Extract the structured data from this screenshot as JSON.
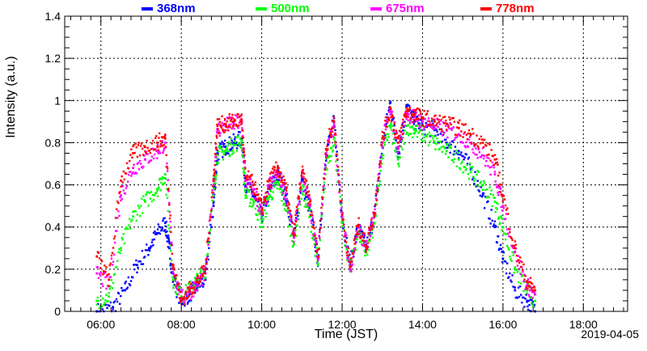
{
  "chart_data": {
    "type": "scatter",
    "title": "",
    "xlabel": "Time (JST)",
    "ylabel": "Intensity (a.u.)",
    "date_label": "2019-04-05",
    "xlim_hours": [
      5.1,
      19.1
    ],
    "ylim": [
      0,
      1.4
    ],
    "x_ticks": [
      {
        "h": 6,
        "label": "06:00"
      },
      {
        "h": 8,
        "label": "08:00"
      },
      {
        "h": 10,
        "label": "10:00"
      },
      {
        "h": 12,
        "label": "12:00"
      },
      {
        "h": 14,
        "label": "14:00"
      },
      {
        "h": 16,
        "label": "16:00"
      },
      {
        "h": 18,
        "label": "18:00"
      }
    ],
    "y_ticks": [
      {
        "v": 0,
        "label": "0"
      },
      {
        "v": 0.2,
        "label": "0.2"
      },
      {
        "v": 0.4,
        "label": "0.4"
      },
      {
        "v": 0.6,
        "label": "0.6"
      },
      {
        "v": 0.8,
        "label": "0.8"
      },
      {
        "v": 1.0,
        "label": "1"
      },
      {
        "v": 1.2,
        "label": "1.2"
      },
      {
        "v": 1.4,
        "label": "1.4"
      }
    ],
    "grid": true,
    "legend_position": "top",
    "series": [
      {
        "name": "368nm",
        "color": "#0000ff",
        "points": [
          [
            5.9,
            0.0
          ],
          [
            6.3,
            0.02
          ],
          [
            6.6,
            0.1
          ],
          [
            6.9,
            0.22
          ],
          [
            7.2,
            0.3
          ],
          [
            7.4,
            0.37
          ],
          [
            7.6,
            0.42
          ],
          [
            7.7,
            0.3
          ],
          [
            7.8,
            0.15
          ],
          [
            8.0,
            0.05
          ],
          [
            8.2,
            0.08
          ],
          [
            8.4,
            0.12
          ],
          [
            8.6,
            0.15
          ],
          [
            8.8,
            0.5
          ],
          [
            8.9,
            0.75
          ],
          [
            9.1,
            0.78
          ],
          [
            9.3,
            0.8
          ],
          [
            9.5,
            0.82
          ],
          [
            9.6,
            0.6
          ],
          [
            9.8,
            0.55
          ],
          [
            10.0,
            0.45
          ],
          [
            10.2,
            0.58
          ],
          [
            10.4,
            0.65
          ],
          [
            10.6,
            0.55
          ],
          [
            10.8,
            0.35
          ],
          [
            11.0,
            0.62
          ],
          [
            11.2,
            0.48
          ],
          [
            11.4,
            0.25
          ],
          [
            11.6,
            0.75
          ],
          [
            11.8,
            0.9
          ],
          [
            12.0,
            0.45
          ],
          [
            12.2,
            0.22
          ],
          [
            12.4,
            0.4
          ],
          [
            12.6,
            0.3
          ],
          [
            12.8,
            0.45
          ],
          [
            13.0,
            0.78
          ],
          [
            13.2,
            0.99
          ],
          [
            13.4,
            0.75
          ],
          [
            13.6,
            0.97
          ],
          [
            13.8,
            0.9
          ],
          [
            14.0,
            0.88
          ],
          [
            14.3,
            0.86
          ],
          [
            14.6,
            0.8
          ],
          [
            14.9,
            0.76
          ],
          [
            15.2,
            0.68
          ],
          [
            15.5,
            0.55
          ],
          [
            15.8,
            0.4
          ],
          [
            16.0,
            0.25
          ],
          [
            16.3,
            0.1
          ],
          [
            16.6,
            0.05
          ],
          [
            16.8,
            0.0
          ]
        ]
      },
      {
        "name": "500nm",
        "color": "#00ff00",
        "points": [
          [
            5.9,
            0.05
          ],
          [
            6.2,
            0.07
          ],
          [
            6.5,
            0.3
          ],
          [
            6.8,
            0.45
          ],
          [
            7.1,
            0.52
          ],
          [
            7.4,
            0.58
          ],
          [
            7.6,
            0.65
          ],
          [
            7.8,
            0.15
          ],
          [
            8.0,
            0.07
          ],
          [
            8.2,
            0.1
          ],
          [
            8.4,
            0.15
          ],
          [
            8.6,
            0.2
          ],
          [
            8.8,
            0.55
          ],
          [
            8.9,
            0.74
          ],
          [
            9.1,
            0.76
          ],
          [
            9.3,
            0.79
          ],
          [
            9.5,
            0.81
          ],
          [
            9.6,
            0.55
          ],
          [
            9.8,
            0.52
          ],
          [
            10.0,
            0.42
          ],
          [
            10.2,
            0.55
          ],
          [
            10.4,
            0.6
          ],
          [
            10.6,
            0.5
          ],
          [
            10.8,
            0.32
          ],
          [
            11.0,
            0.58
          ],
          [
            11.2,
            0.45
          ],
          [
            11.4,
            0.22
          ],
          [
            11.6,
            0.68
          ],
          [
            11.8,
            0.82
          ],
          [
            12.0,
            0.42
          ],
          [
            12.2,
            0.2
          ],
          [
            12.4,
            0.38
          ],
          [
            12.6,
            0.28
          ],
          [
            12.8,
            0.42
          ],
          [
            13.0,
            0.74
          ],
          [
            13.2,
            0.88
          ],
          [
            13.4,
            0.7
          ],
          [
            13.6,
            0.88
          ],
          [
            13.8,
            0.86
          ],
          [
            14.0,
            0.84
          ],
          [
            14.3,
            0.8
          ],
          [
            14.6,
            0.76
          ],
          [
            14.9,
            0.72
          ],
          [
            15.2,
            0.66
          ],
          [
            15.5,
            0.6
          ],
          [
            15.8,
            0.52
          ],
          [
            16.0,
            0.4
          ],
          [
            16.3,
            0.2
          ],
          [
            16.6,
            0.1
          ],
          [
            16.8,
            0.05
          ]
        ]
      },
      {
        "name": "675nm",
        "color": "#ff00ff",
        "points": [
          [
            5.9,
            0.18
          ],
          [
            6.2,
            0.12
          ],
          [
            6.5,
            0.55
          ],
          [
            6.8,
            0.68
          ],
          [
            7.1,
            0.72
          ],
          [
            7.4,
            0.76
          ],
          [
            7.6,
            0.8
          ],
          [
            7.8,
            0.2
          ],
          [
            8.0,
            0.06
          ],
          [
            8.2,
            0.09
          ],
          [
            8.4,
            0.13
          ],
          [
            8.6,
            0.18
          ],
          [
            8.8,
            0.6
          ],
          [
            8.9,
            0.86
          ],
          [
            9.1,
            0.88
          ],
          [
            9.3,
            0.89
          ],
          [
            9.5,
            0.9
          ],
          [
            9.6,
            0.62
          ],
          [
            9.8,
            0.58
          ],
          [
            10.0,
            0.46
          ],
          [
            10.2,
            0.6
          ],
          [
            10.4,
            0.66
          ],
          [
            10.6,
            0.56
          ],
          [
            10.8,
            0.35
          ],
          [
            11.0,
            0.64
          ],
          [
            11.2,
            0.5
          ],
          [
            11.4,
            0.25
          ],
          [
            11.6,
            0.75
          ],
          [
            11.8,
            0.88
          ],
          [
            12.0,
            0.45
          ],
          [
            12.2,
            0.2
          ],
          [
            12.4,
            0.4
          ],
          [
            12.6,
            0.3
          ],
          [
            12.8,
            0.45
          ],
          [
            13.0,
            0.8
          ],
          [
            13.2,
            0.95
          ],
          [
            13.4,
            0.78
          ],
          [
            13.6,
            0.94
          ],
          [
            13.8,
            0.92
          ],
          [
            14.0,
            0.9
          ],
          [
            14.3,
            0.88
          ],
          [
            14.6,
            0.86
          ],
          [
            14.9,
            0.84
          ],
          [
            15.2,
            0.8
          ],
          [
            15.5,
            0.74
          ],
          [
            15.8,
            0.65
          ],
          [
            16.0,
            0.5
          ],
          [
            16.3,
            0.28
          ],
          [
            16.6,
            0.12
          ],
          [
            16.8,
            0.08
          ]
        ]
      },
      {
        "name": "778nm",
        "color": "#ff0000",
        "points": [
          [
            5.9,
            0.26
          ],
          [
            6.2,
            0.15
          ],
          [
            6.5,
            0.62
          ],
          [
            6.8,
            0.75
          ],
          [
            7.1,
            0.78
          ],
          [
            7.4,
            0.8
          ],
          [
            7.6,
            0.82
          ],
          [
            7.8,
            0.22
          ],
          [
            8.0,
            0.05
          ],
          [
            8.2,
            0.1
          ],
          [
            8.4,
            0.14
          ],
          [
            8.6,
            0.2
          ],
          [
            8.8,
            0.62
          ],
          [
            8.9,
            0.88
          ],
          [
            9.1,
            0.89
          ],
          [
            9.3,
            0.9
          ],
          [
            9.5,
            0.91
          ],
          [
            9.6,
            0.64
          ],
          [
            9.8,
            0.6
          ],
          [
            10.0,
            0.48
          ],
          [
            10.2,
            0.62
          ],
          [
            10.4,
            0.68
          ],
          [
            10.6,
            0.58
          ],
          [
            10.8,
            0.36
          ],
          [
            11.0,
            0.66
          ],
          [
            11.2,
            0.52
          ],
          [
            11.4,
            0.26
          ],
          [
            11.6,
            0.77
          ],
          [
            11.8,
            0.9
          ],
          [
            12.0,
            0.46
          ],
          [
            12.2,
            0.21
          ],
          [
            12.4,
            0.41
          ],
          [
            12.6,
            0.31
          ],
          [
            12.8,
            0.46
          ],
          [
            13.0,
            0.82
          ],
          [
            13.2,
            0.96
          ],
          [
            13.4,
            0.8
          ],
          [
            13.6,
            0.95
          ],
          [
            13.8,
            0.93
          ],
          [
            14.0,
            0.92
          ],
          [
            14.3,
            0.9
          ],
          [
            14.6,
            0.89
          ],
          [
            14.9,
            0.87
          ],
          [
            15.2,
            0.84
          ],
          [
            15.5,
            0.8
          ],
          [
            15.8,
            0.72
          ],
          [
            16.0,
            0.55
          ],
          [
            16.3,
            0.3
          ],
          [
            16.6,
            0.14
          ],
          [
            16.8,
            0.1
          ]
        ]
      }
    ]
  }
}
